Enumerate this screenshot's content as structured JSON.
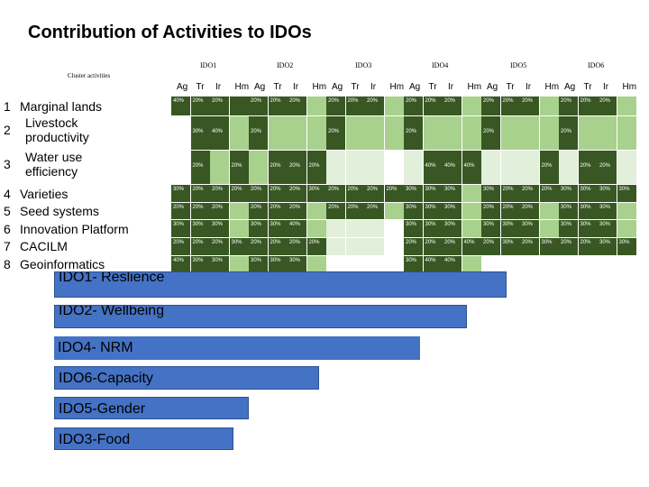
{
  "title": "Contribution of Activities to IDOs",
  "cluster_header": "Cluster activities",
  "ido_headers": [
    "IDO1",
    "IDO2",
    "IDO3",
    "IDO4",
    "IDO5",
    "IDO6"
  ],
  "sub_headers": [
    "Ag",
    "Tr",
    "Ir",
    "Hm"
  ],
  "rows": [
    {
      "num": "1",
      "label": "Marginal lands"
    },
    {
      "num": "2",
      "label": "Livestock productivity"
    },
    {
      "num": "3",
      "label": "Water use efficiency"
    },
    {
      "num": "4",
      "label": "Varieties"
    },
    {
      "num": "5",
      "label": "Seed systems"
    },
    {
      "num": "6",
      "label": "Innovation Platform"
    },
    {
      "num": "7",
      "label": "CACILM"
    },
    {
      "num": "8",
      "label": "Geoinformatics"
    }
  ],
  "cells": [
    [
      "40%",
      "20%",
      "20%",
      "",
      "20%",
      "20%",
      "20%",
      "",
      "20%",
      "20%",
      "20%",
      "",
      "20%",
      "20%",
      "20%",
      "",
      "20%",
      "20%",
      "20%",
      "",
      "20%",
      "20%",
      "20%",
      ""
    ],
    [
      "",
      "30%",
      "40%",
      "",
      "20%",
      "",
      "",
      "",
      "20%",
      "",
      "",
      "",
      "20%",
      "",
      "",
      "",
      "20%",
      "",
      "",
      "",
      "20%",
      "",
      "",
      ""
    ],
    [
      "",
      "20%",
      "",
      "20%",
      "",
      "20%",
      "20%",
      "20%",
      "",
      "",
      "",
      "",
      "",
      "40%",
      "40%",
      "40%",
      "",
      "",
      "",
      "20%",
      "",
      "20%",
      "20%",
      ""
    ],
    [
      "30%",
      "20%",
      "20%",
      "20%",
      "20%",
      "20%",
      "20%",
      "30%",
      "20%",
      "20%",
      "20%",
      "20%",
      "30%",
      "30%",
      "30%",
      "",
      "30%",
      "20%",
      "20%",
      "20%",
      "30%",
      "30%",
      "30%",
      "30%"
    ],
    [
      "20%",
      "20%",
      "20%",
      "",
      "20%",
      "20%",
      "20%",
      "",
      "20%",
      "20%",
      "20%",
      "",
      "30%",
      "30%",
      "30%",
      "",
      "20%",
      "20%",
      "20%",
      "",
      "30%",
      "30%",
      "30%",
      ""
    ],
    [
      "30%",
      "30%",
      "30%",
      "",
      "30%",
      "30%",
      "40%",
      "",
      "",
      "",
      "",
      "",
      "30%",
      "30%",
      "30%",
      "",
      "30%",
      "30%",
      "30%",
      "",
      "30%",
      "30%",
      "30%",
      ""
    ],
    [
      "20%",
      "20%",
      "20%",
      "30%",
      "20%",
      "20%",
      "20%",
      "20%",
      "",
      "",
      "",
      "",
      "20%",
      "20%",
      "20%",
      "40%",
      "20%",
      "30%",
      "20%",
      "30%",
      "20%",
      "20%",
      "30%",
      "30%"
    ],
    [
      "40%",
      "30%",
      "30%",
      "",
      "30%",
      "30%",
      "30%",
      "",
      "",
      "",
      "",
      "",
      "30%",
      "40%",
      "40%",
      "",
      "",
      "",
      "",
      "",
      "",
      "",
      "",
      ""
    ]
  ],
  "shades": [
    [
      "d",
      "d",
      "d",
      "d",
      "d",
      "d",
      "d",
      "m",
      "d",
      "d",
      "d",
      "m",
      "d",
      "d",
      "d",
      "m",
      "d",
      "d",
      "d",
      "m",
      "d",
      "d",
      "d",
      "m"
    ],
    [
      "n",
      "d",
      "d",
      "m",
      "d",
      "m",
      "m",
      "m",
      "d",
      "m",
      "m",
      "m",
      "d",
      "m",
      "m",
      "m",
      "d",
      "m",
      "m",
      "m",
      "d",
      "m",
      "m",
      "m"
    ],
    [
      "n",
      "d",
      "m",
      "d",
      "m",
      "d",
      "d",
      "d",
      "l",
      "l",
      "l",
      "n",
      "l",
      "d",
      "d",
      "d",
      "l",
      "l",
      "l",
      "d",
      "l",
      "d",
      "d",
      "l"
    ],
    [
      "d",
      "d",
      "d",
      "d",
      "d",
      "d",
      "d",
      "d",
      "d",
      "d",
      "d",
      "d",
      "d",
      "d",
      "d",
      "m",
      "d",
      "d",
      "d",
      "d",
      "d",
      "d",
      "d",
      "d"
    ],
    [
      "d",
      "d",
      "d",
      "m",
      "d",
      "d",
      "d",
      "m",
      "d",
      "d",
      "d",
      "m",
      "d",
      "d",
      "d",
      "m",
      "d",
      "d",
      "d",
      "m",
      "d",
      "d",
      "d",
      "m"
    ],
    [
      "d",
      "d",
      "d",
      "m",
      "d",
      "d",
      "d",
      "m",
      "l",
      "l",
      "l",
      "n",
      "d",
      "d",
      "d",
      "m",
      "d",
      "d",
      "d",
      "m",
      "d",
      "d",
      "d",
      "m"
    ],
    [
      "d",
      "d",
      "d",
      "d",
      "d",
      "d",
      "d",
      "d",
      "l",
      "l",
      "l",
      "n",
      "d",
      "d",
      "d",
      "d",
      "d",
      "d",
      "d",
      "d",
      "d",
      "d",
      "d",
      "d"
    ],
    [
      "d",
      "d",
      "d",
      "m",
      "d",
      "d",
      "d",
      "m",
      "n",
      "n",
      "n",
      "n",
      "d",
      "d",
      "d",
      "m",
      "n",
      "n",
      "n",
      "n",
      "n",
      "n",
      "n",
      "n"
    ]
  ],
  "bars": [
    {
      "label": "IDO1- Reslience",
      "value": 502
    },
    {
      "label": "IDO2- Wellbeing",
      "value": 458
    },
    {
      "label": "IDO4- NRM",
      "value": 406
    },
    {
      "label": "IDO6-Capacity",
      "value": 294
    },
    {
      "label": "IDO5-Gender",
      "value": 216
    },
    {
      "label": "IDO3-Food",
      "value": 199
    }
  ]
}
